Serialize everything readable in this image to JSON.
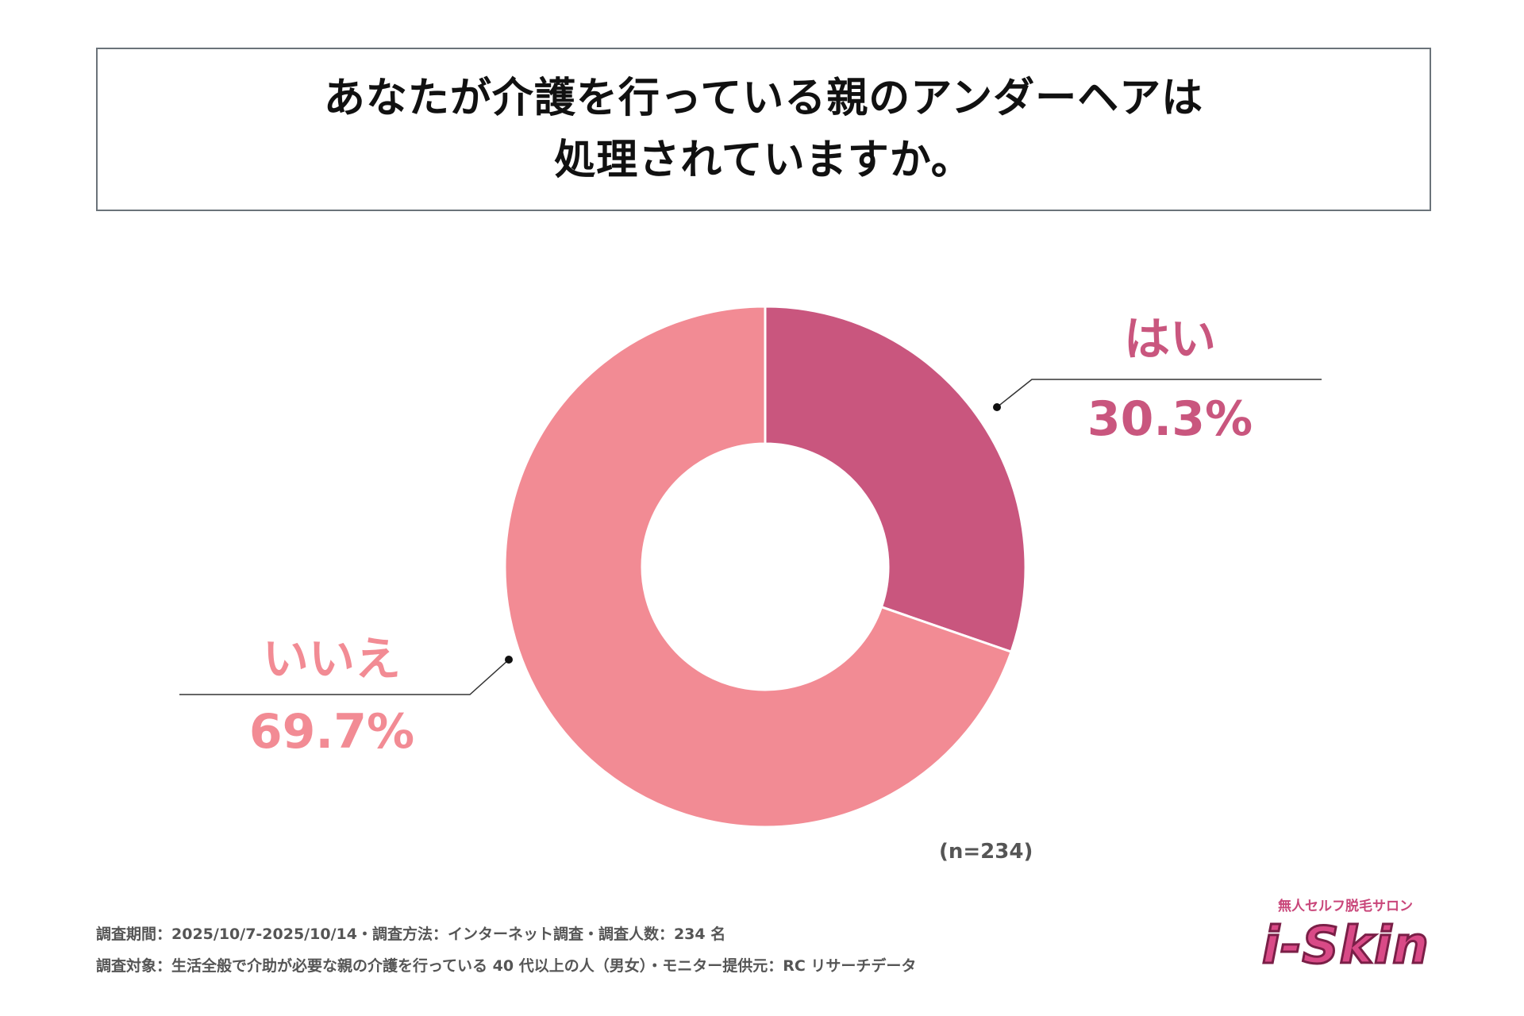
{
  "title": {
    "line1": "あなたが介護を行っている親のアンダーヘアは",
    "line2": "処理されていますか。"
  },
  "chart_data": {
    "type": "pie",
    "variant": "donut",
    "categories": [
      "はい",
      "いいえ"
    ],
    "values": [
      30.3,
      69.7
    ],
    "labels": [
      "30.3%",
      "69.7%"
    ],
    "colors": [
      "#c9567e",
      "#f28b94"
    ],
    "start": "12 o'clock, clockwise"
  },
  "sample_size": "(n=234)",
  "footer": {
    "line1": "調査期間：2025/10/7-2025/10/14・調査方法：インターネット調査・調査人数：234 名",
    "line2": "調査対象：生活全般で介助が必要な親の介護を行っている 40 代以上の人（男女）・モニター提供元：RC リサーチデータ"
  },
  "logo": {
    "subtitle": "無人セルフ脱毛サロン",
    "brand": "i-Skin"
  }
}
